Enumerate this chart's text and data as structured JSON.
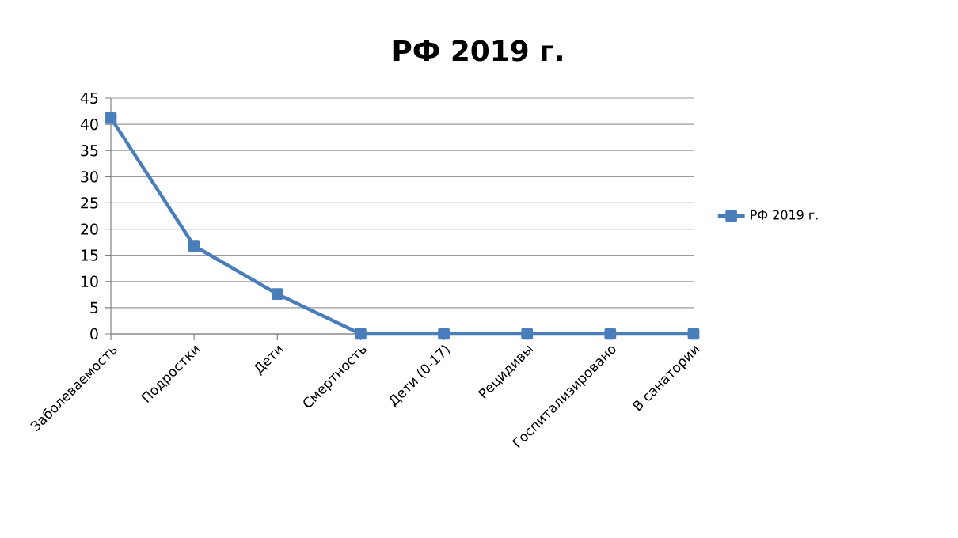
{
  "chart_data": {
    "type": "line",
    "title": "РФ 2019 г.",
    "categories": [
      "Заболеваемость",
      "Подростки",
      "Дети",
      "Смертность",
      "Дети (0-17)",
      "Рецидивы",
      "Госпитализировано",
      "В санатории"
    ],
    "series": [
      {
        "name": "РФ 2019 г.",
        "color": "#4a7ebb",
        "values": [
          41.2,
          16.8,
          7.6,
          0,
          0,
          0,
          0,
          0
        ]
      }
    ],
    "ylim": [
      0,
      45
    ],
    "yticks": [
      0,
      5,
      10,
      15,
      20,
      25,
      30,
      35,
      40,
      45
    ],
    "grid": "y",
    "legend": "right",
    "marker": "square",
    "line_style": "solid"
  }
}
